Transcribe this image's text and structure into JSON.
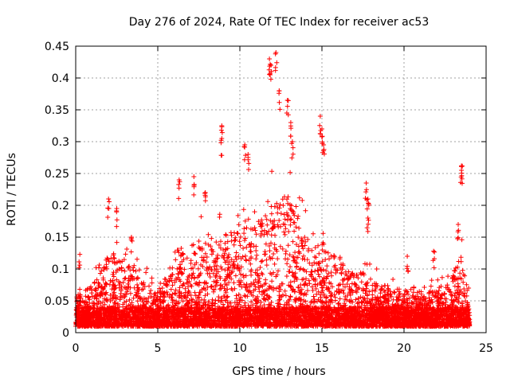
{
  "chart_data": {
    "type": "scatter",
    "title": "Day 276 of 2024, Rate Of TEC Index for receiver ac53",
    "xlabel": "GPS time / hours",
    "ylabel": "ROTI / TECUs",
    "xlim": [
      0,
      25
    ],
    "ylim": [
      0,
      0.45
    ],
    "x_ticks": [
      "0",
      "5",
      "10",
      "15",
      "20",
      "25"
    ],
    "y_ticks": [
      "0",
      "0.05",
      "0.1",
      "0.15",
      "0.2",
      "0.25",
      "0.3",
      "0.35",
      "0.4",
      "0.45"
    ],
    "grid": true,
    "marker": "+",
    "color": "#ff0000",
    "activity_envelope": {
      "x": [
        0,
        0.5,
        1.0,
        1.5,
        2.0,
        2.5,
        3.0,
        3.5,
        4.0,
        4.5,
        5.0,
        5.5,
        6.0,
        6.5,
        7.0,
        7.5,
        8.0,
        8.5,
        9.0,
        9.5,
        10.0,
        10.5,
        11.0,
        11.5,
        12.0,
        12.5,
        13.0,
        13.5,
        14.0,
        14.5,
        15.0,
        15.5,
        16.0,
        16.5,
        17.0,
        17.5,
        18.0,
        18.5,
        19.0,
        19.5,
        20.0,
        20.5,
        21.0,
        21.5,
        22.0,
        22.5,
        23.0,
        23.5,
        24.0
      ],
      "typical_max": [
        0.05,
        0.06,
        0.07,
        0.09,
        0.12,
        0.12,
        0.1,
        0.1,
        0.08,
        0.07,
        0.06,
        0.09,
        0.13,
        0.12,
        0.11,
        0.14,
        0.14,
        0.13,
        0.15,
        0.15,
        0.16,
        0.18,
        0.19,
        0.18,
        0.2,
        0.21,
        0.22,
        0.19,
        0.15,
        0.13,
        0.14,
        0.12,
        0.12,
        0.1,
        0.09,
        0.09,
        0.08,
        0.07,
        0.07,
        0.06,
        0.06,
        0.07,
        0.06,
        0.06,
        0.06,
        0.07,
        0.09,
        0.12,
        0.05
      ]
    },
    "notable_points": [
      {
        "x": 0.25,
        "y": 0.123
      },
      {
        "x": 2.0,
        "y": 0.21
      },
      {
        "x": 2.5,
        "y": 0.195
      },
      {
        "x": 3.4,
        "y": 0.15
      },
      {
        "x": 6.3,
        "y": 0.24
      },
      {
        "x": 7.2,
        "y": 0.245
      },
      {
        "x": 7.9,
        "y": 0.22
      },
      {
        "x": 8.9,
        "y": 0.325
      },
      {
        "x": 8.9,
        "y": 0.305
      },
      {
        "x": 10.3,
        "y": 0.295
      },
      {
        "x": 10.5,
        "y": 0.28
      },
      {
        "x": 11.8,
        "y": 0.43
      },
      {
        "x": 11.9,
        "y": 0.42
      },
      {
        "x": 12.2,
        "y": 0.44
      },
      {
        "x": 12.4,
        "y": 0.38
      },
      {
        "x": 12.9,
        "y": 0.365
      },
      {
        "x": 13.1,
        "y": 0.33
      },
      {
        "x": 13.2,
        "y": 0.3
      },
      {
        "x": 14.9,
        "y": 0.34
      },
      {
        "x": 15.0,
        "y": 0.32
      },
      {
        "x": 15.1,
        "y": 0.295
      },
      {
        "x": 17.7,
        "y": 0.235
      },
      {
        "x": 17.8,
        "y": 0.21
      },
      {
        "x": 17.8,
        "y": 0.18
      },
      {
        "x": 20.2,
        "y": 0.12
      },
      {
        "x": 21.8,
        "y": 0.128
      },
      {
        "x": 23.3,
        "y": 0.17
      },
      {
        "x": 23.5,
        "y": 0.262
      },
      {
        "x": 23.5,
        "y": 0.255
      }
    ]
  }
}
